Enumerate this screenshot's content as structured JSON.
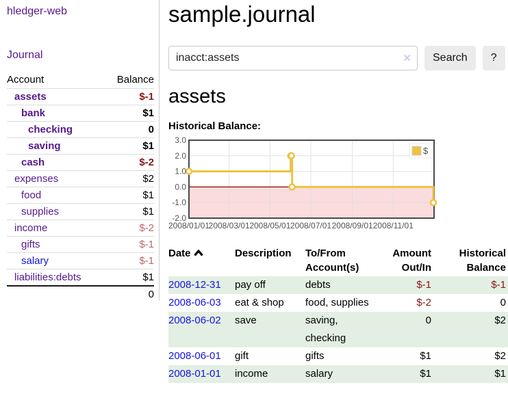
{
  "app": {
    "title": "hledger-web"
  },
  "sidebar": {
    "nav": [
      {
        "label": "Journal"
      }
    ],
    "accounts_table": {
      "headers": {
        "account": "Account",
        "balance": "Balance"
      },
      "rows": [
        {
          "account": "assets",
          "balance": "$-1",
          "depth": 1,
          "bold": true,
          "negative": "strong",
          "link_style": "purple"
        },
        {
          "account": "bank",
          "balance": "$1",
          "depth": 2,
          "bold": true,
          "negative": null,
          "link_style": "purple"
        },
        {
          "account": "checking",
          "balance": "0",
          "depth": 3,
          "bold": true,
          "negative": null,
          "link_style": "purple"
        },
        {
          "account": "saving",
          "balance": "$1",
          "depth": 3,
          "bold": true,
          "negative": null,
          "link_style": "purple"
        },
        {
          "account": "cash",
          "balance": "$-2",
          "depth": 2,
          "bold": true,
          "negative": "strong",
          "link_style": "purple"
        },
        {
          "account": "expenses",
          "balance": "$2",
          "depth": 1,
          "bold": false,
          "negative": null,
          "link_style": "purple"
        },
        {
          "account": "food",
          "balance": "$1",
          "depth": 2,
          "bold": false,
          "negative": null,
          "link_style": "purple"
        },
        {
          "account": "supplies",
          "balance": "$1",
          "depth": 2,
          "bold": false,
          "negative": null,
          "link_style": "purple"
        },
        {
          "account": "income",
          "balance": "$-2",
          "depth": 1,
          "bold": false,
          "negative": "muted",
          "link_style": "purple"
        },
        {
          "account": "gifts",
          "balance": "$-1",
          "depth": 2,
          "bold": false,
          "negative": "muted",
          "link_style": "purple"
        },
        {
          "account": "salary",
          "balance": "$-1",
          "depth": 2,
          "bold": false,
          "negative": "muted",
          "link_style": "blue"
        },
        {
          "account": "liabilities:debts",
          "balance": "$1",
          "depth": 1,
          "bold": false,
          "negative": null,
          "link_style": "purple"
        }
      ],
      "total": "0"
    }
  },
  "main": {
    "title": "sample.journal",
    "search": {
      "value": "inacct:assets",
      "clear_icon": "✕",
      "button": "Search",
      "help_button": "?"
    },
    "account_heading": "assets",
    "chart_heading": "Historical Balance:"
  },
  "chart_data": {
    "type": "line",
    "title": "Historical Balance:",
    "legend": {
      "position": "top-right",
      "entries": [
        "$"
      ]
    },
    "series": [
      {
        "name": "$",
        "color": "#edc240",
        "style": "step-with-markers",
        "points": [
          {
            "x": "2008-01-01",
            "y": 1
          },
          {
            "x": "2008-06-01",
            "y": 2
          },
          {
            "x": "2008-06-02",
            "y": 2
          },
          {
            "x": "2008-06-03",
            "y": 0
          },
          {
            "x": "2008-12-31",
            "y": -1
          }
        ]
      }
    ],
    "x_range": [
      "2008-01-01",
      "2009-01-01"
    ],
    "x_ticks": [
      "2008/01/01",
      "2008/03/01",
      "2008/05/01",
      "2008/07/01",
      "2008/09/01",
      "2008/11/01"
    ],
    "y_ticks": [
      3.0,
      2.0,
      1.0,
      0.0,
      -1.0,
      -2.0
    ],
    "ylim": [
      -2,
      3
    ],
    "grid": true,
    "negative_region_color": "#fbdcdc",
    "zero_line_color": "#8b0000",
    "axis_text_color": "#545454",
    "border_color": "#4a4a4a",
    "grid_color": "#dedede"
  },
  "register_table": {
    "headers": [
      "Date",
      "Description",
      "To/From Account(s)",
      "Amount Out/In",
      "Historical Balance"
    ],
    "sort": {
      "column": "Date",
      "direction": "asc"
    },
    "rows": [
      {
        "date": "2008-12-31",
        "description": "pay off",
        "accounts": "debts",
        "amount": "$-1",
        "amount_negative": true,
        "balance": "$-1",
        "balance_negative": true,
        "shaded": true
      },
      {
        "date": "2008-06-03",
        "description": "eat & shop",
        "accounts": "food, supplies",
        "amount": "$-2",
        "amount_negative": true,
        "balance": "0",
        "balance_negative": false,
        "shaded": false
      },
      {
        "date": "2008-06-02",
        "description": "save",
        "accounts": "saving, checking",
        "amount": "0",
        "amount_negative": false,
        "balance": "$2",
        "balance_negative": false,
        "shaded": true
      },
      {
        "date": "2008-06-01",
        "description": "gift",
        "accounts": "gifts",
        "amount": "$1",
        "amount_negative": false,
        "balance": "$2",
        "balance_negative": false,
        "shaded": false
      },
      {
        "date": "2008-01-01",
        "description": "income",
        "accounts": "salary",
        "amount": "$1",
        "amount_negative": false,
        "balance": "$1",
        "balance_negative": false,
        "shaded": true
      }
    ]
  },
  "colors": {
    "link_purple": "#551a8b",
    "link_blue": "#1414dd",
    "negative_strong": "#8b1515",
    "negative_muted": "#bd6868",
    "row_green": "#e3efe3",
    "series_gold": "#edc240",
    "negative_region": "#fbdcdc",
    "zero_line": "#8b0000"
  }
}
